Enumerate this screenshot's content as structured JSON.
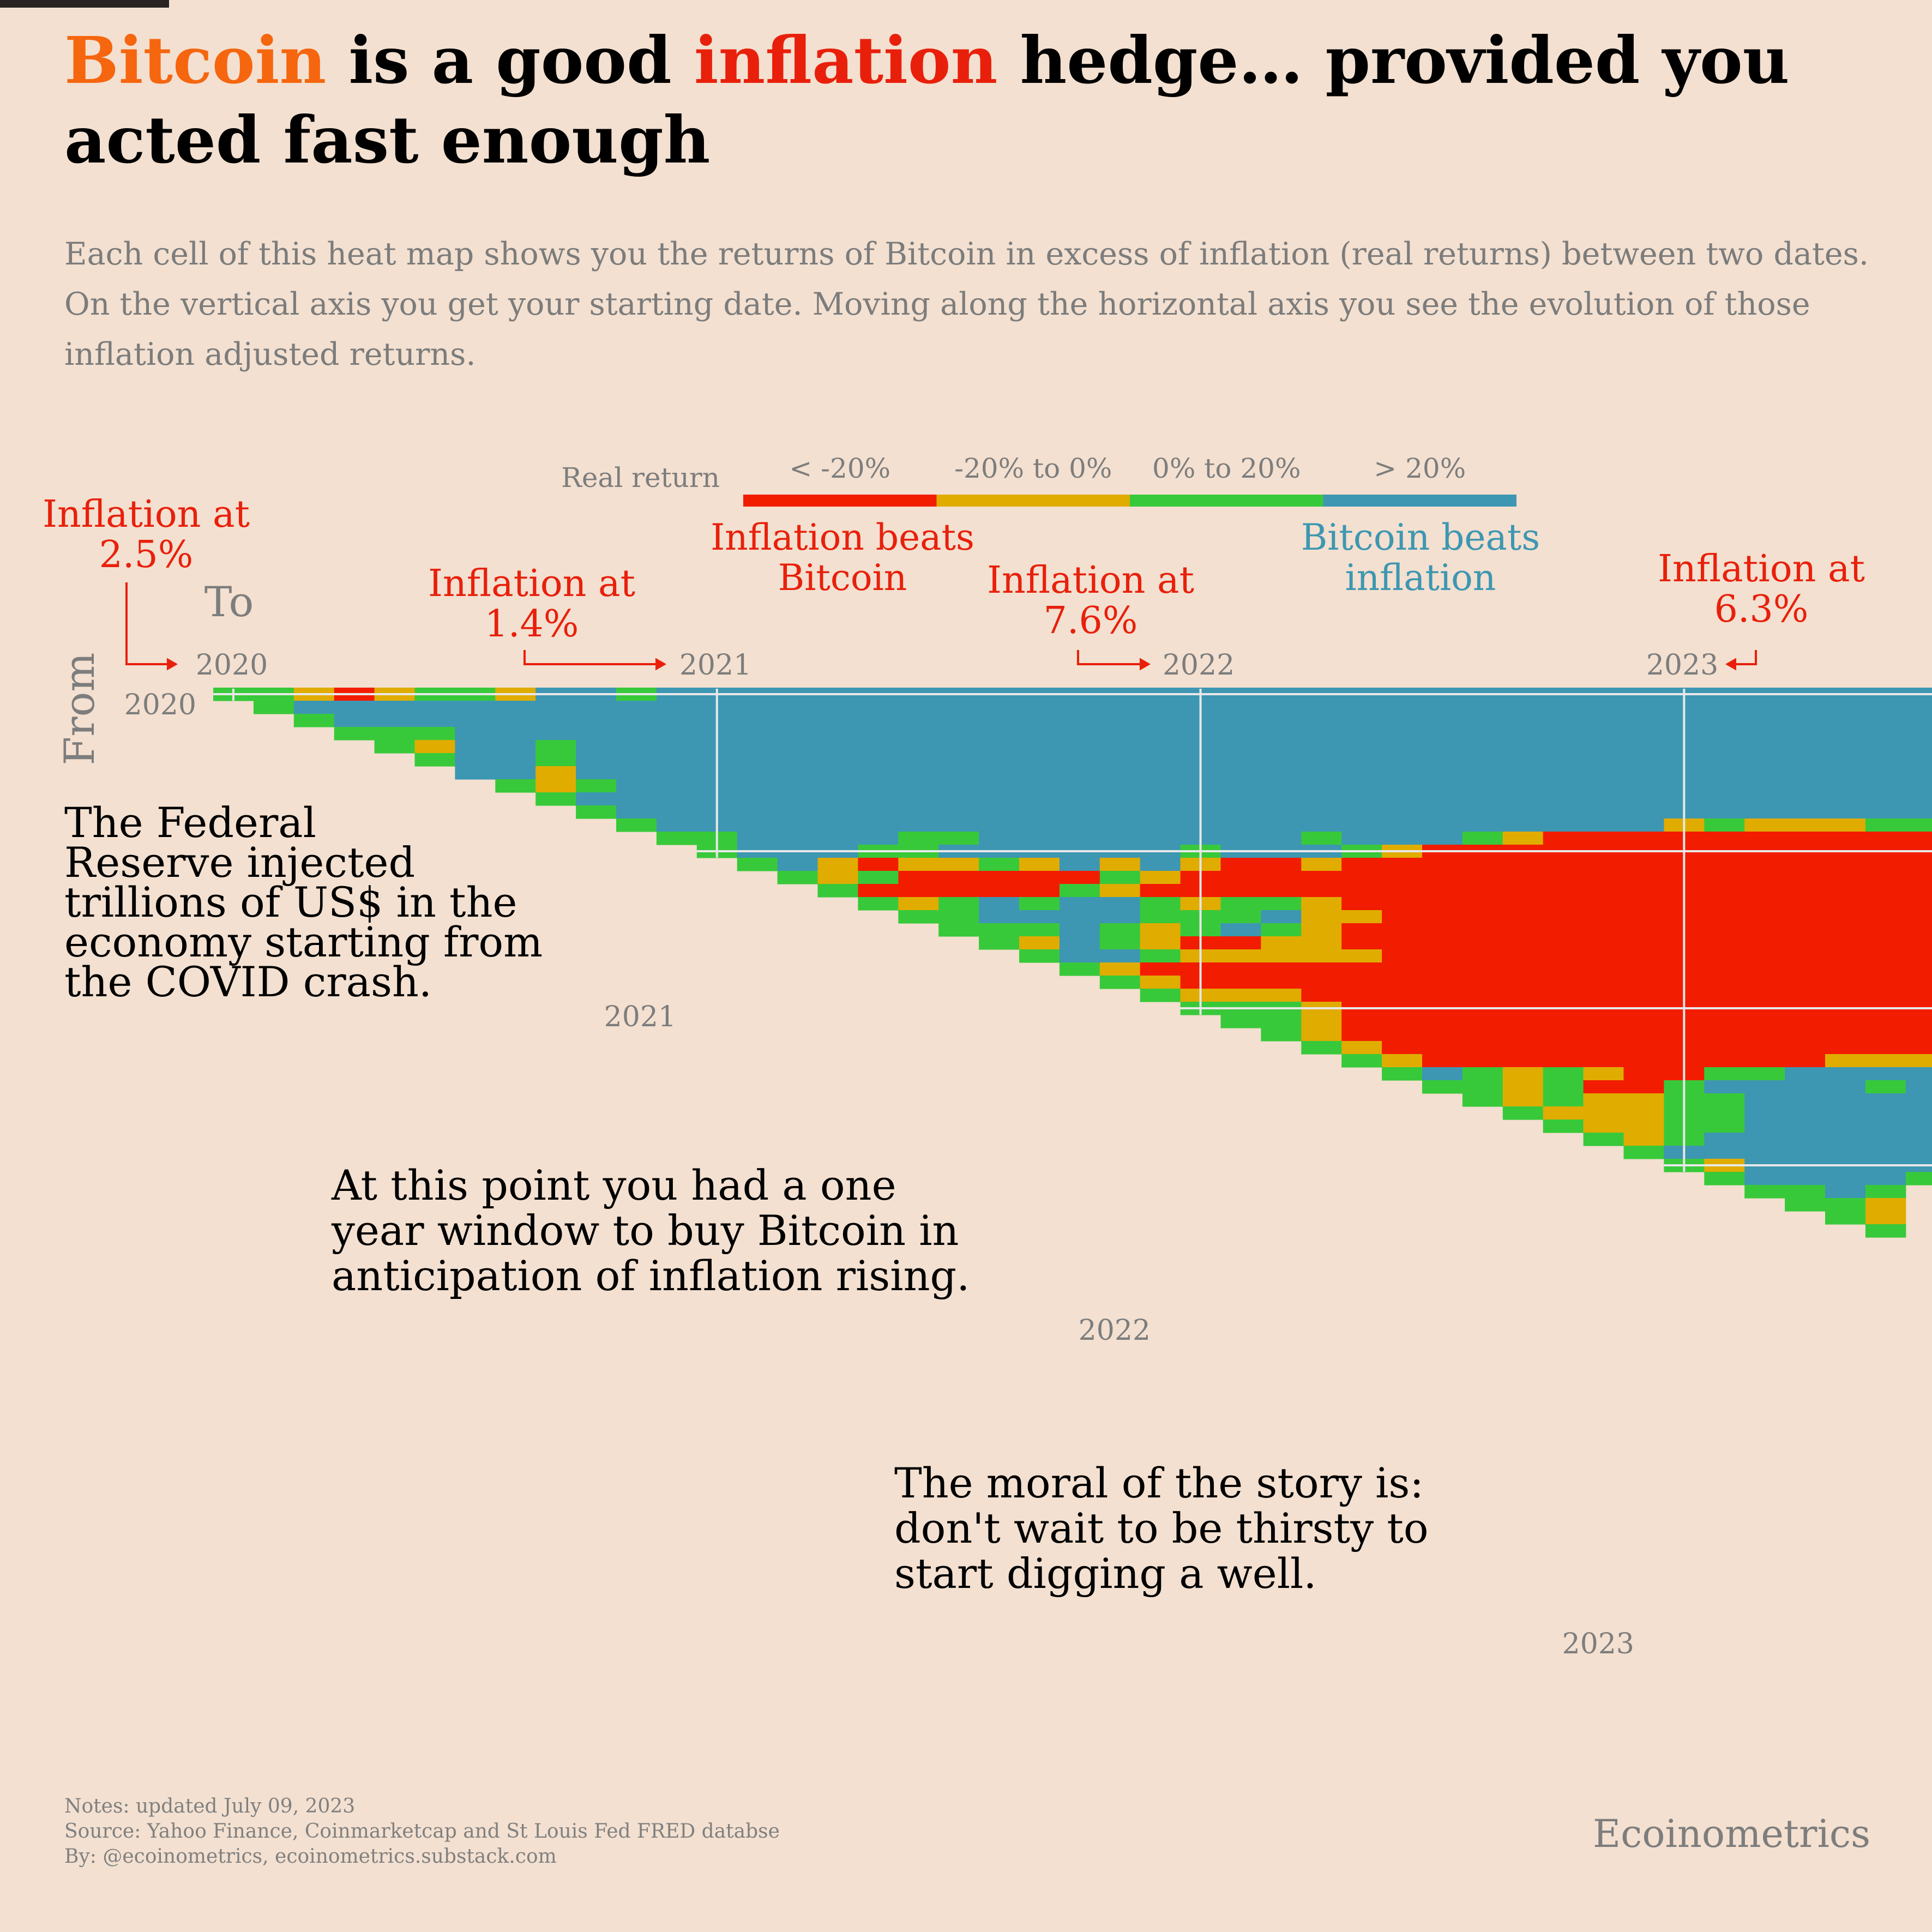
{
  "title": {
    "part1": "Bitcoin",
    "part2": " is a good ",
    "part3": "inflation",
    "part4": " hedge… provided you acted fast enough"
  },
  "subtitle": "Each cell of this heat map shows you the returns of Bitcoin in excess of inflation (real returns) between two dates. On the vertical axis you get your starting date. Moving along the horizontal axis you see the evolution of those inflation adjusted returns.",
  "colors": {
    "background": "#f3e0d0",
    "red": "#f21c00",
    "gold": "#e0ac00",
    "green": "#38c93a",
    "blue": "#3d97b2",
    "annotation_red": "#e8200b",
    "annotation_blue": "#3d97b2",
    "bitcoin_orange": "#f5660f"
  },
  "legend": {
    "title": "Real return",
    "items": [
      {
        "label": "< -20%",
        "color": "#f21c00"
      },
      {
        "label": "-20% to 0%",
        "color": "#e0ac00"
      },
      {
        "label": "0% to 20%",
        "color": "#38c93a"
      },
      {
        "label": "> 20%",
        "color": "#3d97b2"
      }
    ],
    "left_caption": [
      "Inflation beats",
      "Bitcoin"
    ],
    "right_caption": [
      "Bitcoin beats",
      "inflation"
    ]
  },
  "axis": {
    "to_label": "To",
    "from_label": "From",
    "top_ticks": [
      "2020",
      "2021",
      "2022",
      "2023"
    ],
    "side_ticks": [
      "2020",
      "2021",
      "2022",
      "2023"
    ]
  },
  "annotations": {
    "inflation": [
      {
        "lines": [
          "Inflation at",
          "2.5%"
        ]
      },
      {
        "lines": [
          "Inflation at",
          "1.4%"
        ]
      },
      {
        "lines": [
          "Inflation at",
          "7.6%"
        ]
      },
      {
        "lines": [
          "Inflation at",
          "6.3%"
        ]
      }
    ],
    "notes": [
      {
        "lines": [
          "The Federal",
          "Reserve injected",
          "trillions of US$ in the",
          "economy starting from",
          "the COVID crash."
        ]
      },
      {
        "lines": [
          "At this point you had a one",
          "year window to buy Bitcoin in",
          "anticipation of inflation rising."
        ]
      },
      {
        "lines": [
          "The moral of the story is:",
          "don't wait to be thirsty to",
          "start digging a well."
        ]
      }
    ]
  },
  "chart_data": {
    "type": "heatmap",
    "x_axis": "To (month)",
    "y_axis": "From (month)",
    "period": {
      "start": "2020-01",
      "end": "2023-07",
      "months": 43
    },
    "legend_classes": [
      "< -20%",
      "-20% to 0%",
      "0% to 20%",
      "> 20%"
    ],
    "cell_codes": {
      "R": "< -20%",
      "O": "-20% to 0%",
      "G": "0% to 20%",
      "B": "> 20%"
    },
    "rows": [
      "GGOROGGOBBGBBBBBBBBBBBBBBBBBBBBBBBBBBBBBBBB",
      "GBBBBBBBBBBBBBBBBBBBBBBBBBBBBBBBBBBBBBBBBB",
      "GBBBBBBBBBBBBBBBBBBBBBBBBBBBBBBBBBBBBBBBB",
      "GGGBBBBBBBBBBBBBBBBBBBBBBBBBBBBBBBBBBBBB",
      "GOBBGBBBBBBBBBBBBBBBBBBBBBBBBBBBBBBBBBB",
      "GBBGBBBBBBBBBBBBBBBBBBBBBBBBBBBBBBBBBB",
      "BBOBBBBBBBBBBBBBBBBBBBBBBBBBBBBBBBBBB",
      "GOGBBBBBBBBBBBBBBBBBBBBBBBBBBBBBBBBB",
      "GBBBBBBBBBBBBBBBBBBBBBBBBBBBBBBBBBB",
      "GBBBBBBBBBBBBBBBBBBBBBBBBBBBBBBBBB",
      "GBBBBBBBBBBBBBBBBBBBBBBBBBOGOOOGGGBBB",
      "GGBBBBGGBBBBBBBBGBBBGORRRRRRRRRROOR",
      "GBBBGGBBBBBBGBBBGORRRRRRRRRRRRRRRR",
      "GBOROOGOBOBORRORRRRRRRRRRRRRRRRRR",
      "GOGRRRRRGORRRRRRRRRRRRRRRRRRRRRR",
      "GRRRRRGORRRRRRRRRRRRRRRRRRRRRRR",
      "GOGBGBBGOGGORRRRRRRRRRRRRRRRRR",
      "GGBBBBGGGBOORRRRRRRRRRRRRRRRR",
      "GGGBGOGBGORRRRRRRRRRRRRRRRRR",
      "GOBGORROORRRRRRRRRRRRRRRRRR",
      "GBBGOOOOORRRRRRRRRRRRRRRRR",
      "GORRRRRRRRRRRRRRRRRRRRRRR",
      "GORRRRRRRRRRRRRRRRRRRRRR",
      "GOOORRRRRRRRRRRRRRRRRRR",
      "GGGORRRRRRRRRRRRRRRRRR",
      "GGORRRRRRRRRRRRRRRRRR",
      "GORRRRRRRRRRRRRRRRRR",
      "GORRRRRRRRRRRRRRRRR",
      "GORRRRRRRRRROOOOOO",
      "GBGOGORRGGBBBBBB",
      "GGOGRRGBBBBGBG",
      "GOGOOGGBBBBBB",
      "GOOOGGBBBBBB",
      "GOOGGBBBBBB",
      "GOGBBBBBBB",
      "GBBBBBBBB",
      "GOBBBBBG",
      "GBBBBG",
      "GGBG",
      "GGO",
      "GO",
      "G"
    ],
    "vertical_marks": [
      {
        "label": "2020",
        "month_index": 0
      },
      {
        "label": "2021",
        "month_index": 12
      },
      {
        "label": "2022",
        "month_index": 24
      },
      {
        "label": "2023",
        "month_index": 36
      }
    ]
  },
  "footer": {
    "notes": "Notes: updated July 09, 2023",
    "source": "Source: Yahoo Finance, Coinmarketcap and St Louis Fed FRED databse",
    "by": "By: @ecoinometrics, ecoinometrics.substack.com"
  },
  "brand": "Ecoinometrics"
}
